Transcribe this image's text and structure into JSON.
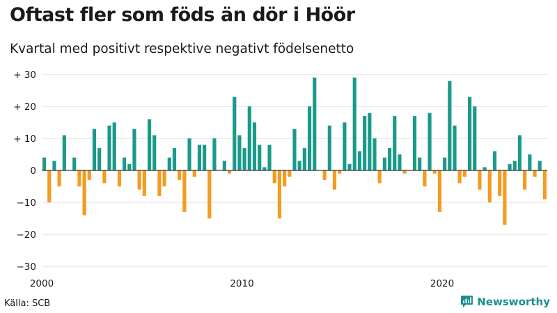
{
  "title": "Oftast fler som föds än dör i Höör",
  "subtitle": "Kvartal med positivt respektive negativt födelsenetto",
  "source": "Källa: SCB",
  "brand": {
    "name": "Newsworthy",
    "icon": "newsworthy-logo-icon"
  },
  "colors": {
    "positive": "#1b9a8a",
    "negative": "#f39c1f",
    "grid": "#dcdcdc",
    "zero_line": "#333333",
    "brand": "#1b8f8f"
  },
  "chart_data": {
    "type": "bar",
    "ylim": [
      -30,
      30
    ],
    "y_ticks": [
      {
        "value": 30,
        "label": "+ 30"
      },
      {
        "value": 20,
        "label": "+ 20"
      },
      {
        "value": 10,
        "label": "+ 10"
      },
      {
        "value": 0,
        "label": "0"
      },
      {
        "value": -10,
        "label": "−10"
      },
      {
        "value": -20,
        "label": "−20"
      },
      {
        "value": -30,
        "label": "−30"
      }
    ],
    "x_ticks": [
      {
        "value": 2000,
        "label": "2000"
      },
      {
        "value": 2010,
        "label": "2010"
      },
      {
        "value": 2020,
        "label": "2020"
      }
    ],
    "xlim": [
      2000,
      2025.25
    ],
    "grid": true,
    "x_start_year": 2000,
    "values": [
      4,
      -10,
      3,
      -5,
      11,
      0,
      4,
      -5,
      -14,
      -3,
      13,
      7,
      -4,
      14,
      15,
      -5,
      4,
      2,
      13,
      -6,
      -8,
      16,
      11,
      -8,
      -5,
      4,
      7,
      -3,
      -13,
      10,
      -2,
      8,
      8,
      -15,
      10,
      0,
      3,
      -1,
      23,
      11,
      7,
      20,
      15,
      8,
      1,
      8,
      -4,
      -15,
      -5,
      -2,
      13,
      3,
      7,
      20,
      29,
      0,
      -3,
      14,
      -6,
      -1,
      15,
      2,
      29,
      6,
      17,
      18,
      10,
      -4,
      4,
      7,
      17,
      5,
      -1,
      0,
      17,
      4,
      -5,
      18,
      -1,
      -13,
      4,
      28,
      14,
      -4,
      -2,
      23,
      20,
      -6,
      1,
      -10,
      6,
      -8,
      -17,
      2,
      3,
      11,
      -6,
      5,
      -2,
      3,
      -9
    ]
  }
}
